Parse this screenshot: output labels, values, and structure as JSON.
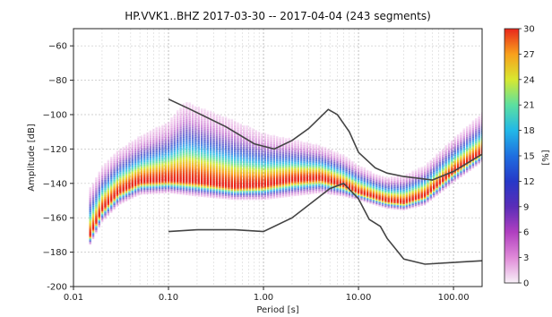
{
  "chart_data": {
    "type": "heatmap",
    "title": "HP.VVK1..BHZ   2017-03-30 -- 2017-04-04  (243 segments)",
    "xlabel": "Period [s]",
    "ylabel": "Amplitude [dB]",
    "x_scale": "log",
    "xlim": [
      0.01,
      200
    ],
    "ylim": [
      -200,
      -50
    ],
    "x_ticks": [
      0.01,
      0.1,
      1,
      10,
      100
    ],
    "x_tick_labels": [
      "0.01",
      "0.10",
      "1.00",
      "10.00",
      "100.00"
    ],
    "y_ticks": [
      -200,
      -180,
      -160,
      -140,
      -120,
      -100,
      -80,
      -60
    ],
    "y_tick_labels": [
      "-200",
      "−180",
      "−160",
      "−140",
      "−120",
      "−100",
      "−80",
      "−60"
    ],
    "grid": true,
    "colorbar": {
      "label": "[%]",
      "range": [
        0,
        30
      ],
      "ticks": [
        0,
        3,
        6,
        9,
        12,
        15,
        18,
        21,
        24,
        27,
        30
      ],
      "colors": [
        "#f7f0f7",
        "#e08ad8",
        "#b03fc0",
        "#5a2db8",
        "#2638c8",
        "#1f6fe0",
        "#22b8e8",
        "#5ce0a0",
        "#d8e830",
        "#f8a01c",
        "#e8261c"
      ]
    },
    "density_center": {
      "name": "mode",
      "period": [
        0.015,
        0.02,
        0.03,
        0.05,
        0.1,
        0.2,
        0.5,
        1,
        2,
        4,
        7,
        10,
        15,
        20,
        30,
        50,
        100,
        200
      ],
      "amplitude_db": [
        -170,
        -155,
        -145,
        -139,
        -138,
        -139,
        -142,
        -141,
        -138,
        -137,
        -141,
        -145,
        -148,
        -150,
        -151,
        -147,
        -133,
        -122
      ]
    },
    "density_upper_envelope": {
      "period": [
        0.015,
        0.02,
        0.03,
        0.05,
        0.1,
        0.15,
        0.2,
        0.5,
        1,
        2,
        4,
        7,
        10,
        15,
        20,
        30,
        50,
        100,
        200
      ],
      "amplitude_db": [
        -140,
        -128,
        -118,
        -110,
        -101,
        -88,
        -91,
        -100,
        -108,
        -112,
        -116,
        -122,
        -128,
        -133,
        -135,
        -134,
        -128,
        -112,
        -97
      ]
    },
    "density_lower_envelope": {
      "period": [
        0.015,
        0.02,
        0.03,
        0.05,
        0.1,
        0.2,
        0.5,
        1,
        2,
        4,
        7,
        10,
        15,
        20,
        30,
        50,
        100,
        200
      ],
      "amplitude_db": [
        -176,
        -163,
        -153,
        -147,
        -146,
        -148,
        -150,
        -150,
        -148,
        -146,
        -148,
        -150,
        -153,
        -155,
        -156,
        -153,
        -140,
        -128
      ]
    },
    "reference_models": [
      {
        "period": [
          0.1,
          0.17,
          0.4,
          0.8,
          1.3,
          2,
          3,
          4.8,
          6,
          8,
          10,
          15,
          20,
          30,
          60,
          100,
          200
        ],
        "amplitude_db": [
          -91,
          -97,
          -107,
          -117,
          -120,
          -115,
          -108,
          -97,
          -100,
          -110,
          -122,
          -131,
          -134,
          -136,
          -138,
          -133,
          -123
        ]
      },
      {
        "period": [
          0.1,
          0.2,
          0.5,
          1,
          2,
          5,
          7,
          10,
          13,
          17,
          20,
          30,
          50,
          100,
          200
        ],
        "amplitude_db": [
          -168,
          -167,
          -167,
          -168,
          -160,
          -143,
          -140,
          -149,
          -161,
          -165,
          -172,
          -184,
          -187,
          -186,
          -185
        ]
      }
    ]
  }
}
